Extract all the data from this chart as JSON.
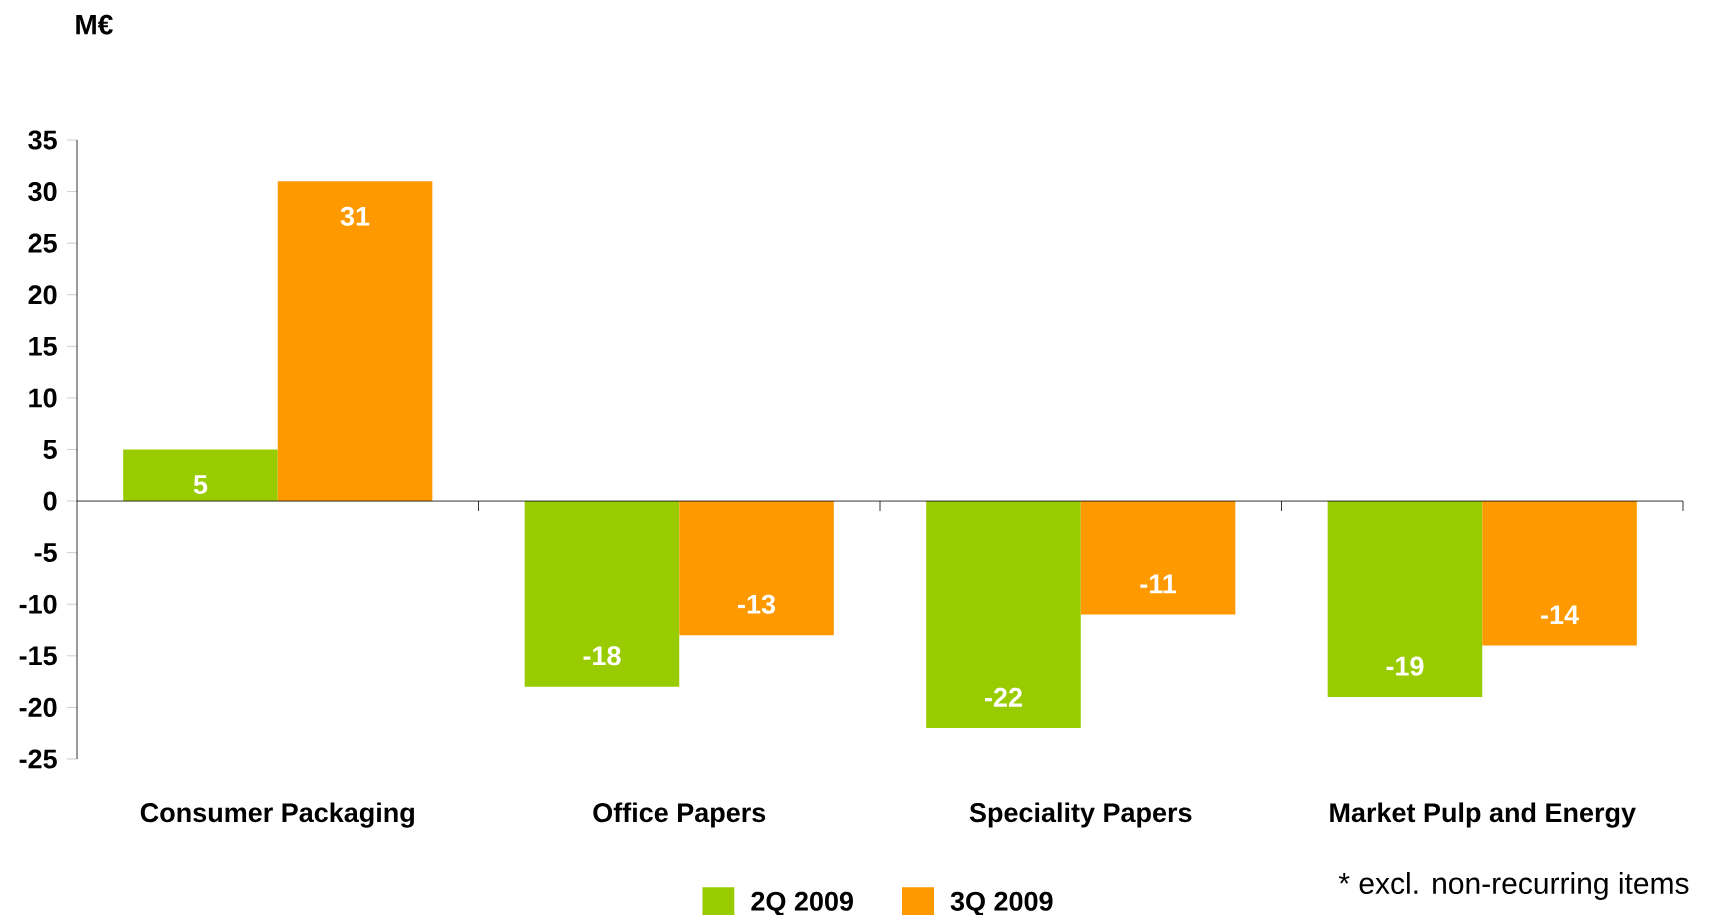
{
  "chart_data": {
    "type": "bar",
    "ylabel": "M€",
    "categories": [
      "Consumer Packaging",
      "Office Papers",
      "Speciality Papers",
      "Market Pulp and Energy"
    ],
    "series": [
      {
        "name": "2Q 2009",
        "color": "#99cc00",
        "values": [
          5,
          -18,
          -22,
          -19
        ]
      },
      {
        "name": "3Q 2009",
        "color": "#ff9900",
        "values": [
          31,
          -13,
          -11,
          -14
        ]
      }
    ],
    "ylim": [
      -25,
      35
    ],
    "yticks": [
      -25,
      -20,
      -15,
      -10,
      -5,
      0,
      5,
      10,
      15,
      20,
      25,
      30,
      35
    ],
    "data_labels": true,
    "legend": "bottom",
    "annotations": [
      "* excl. non-recurring items"
    ]
  }
}
